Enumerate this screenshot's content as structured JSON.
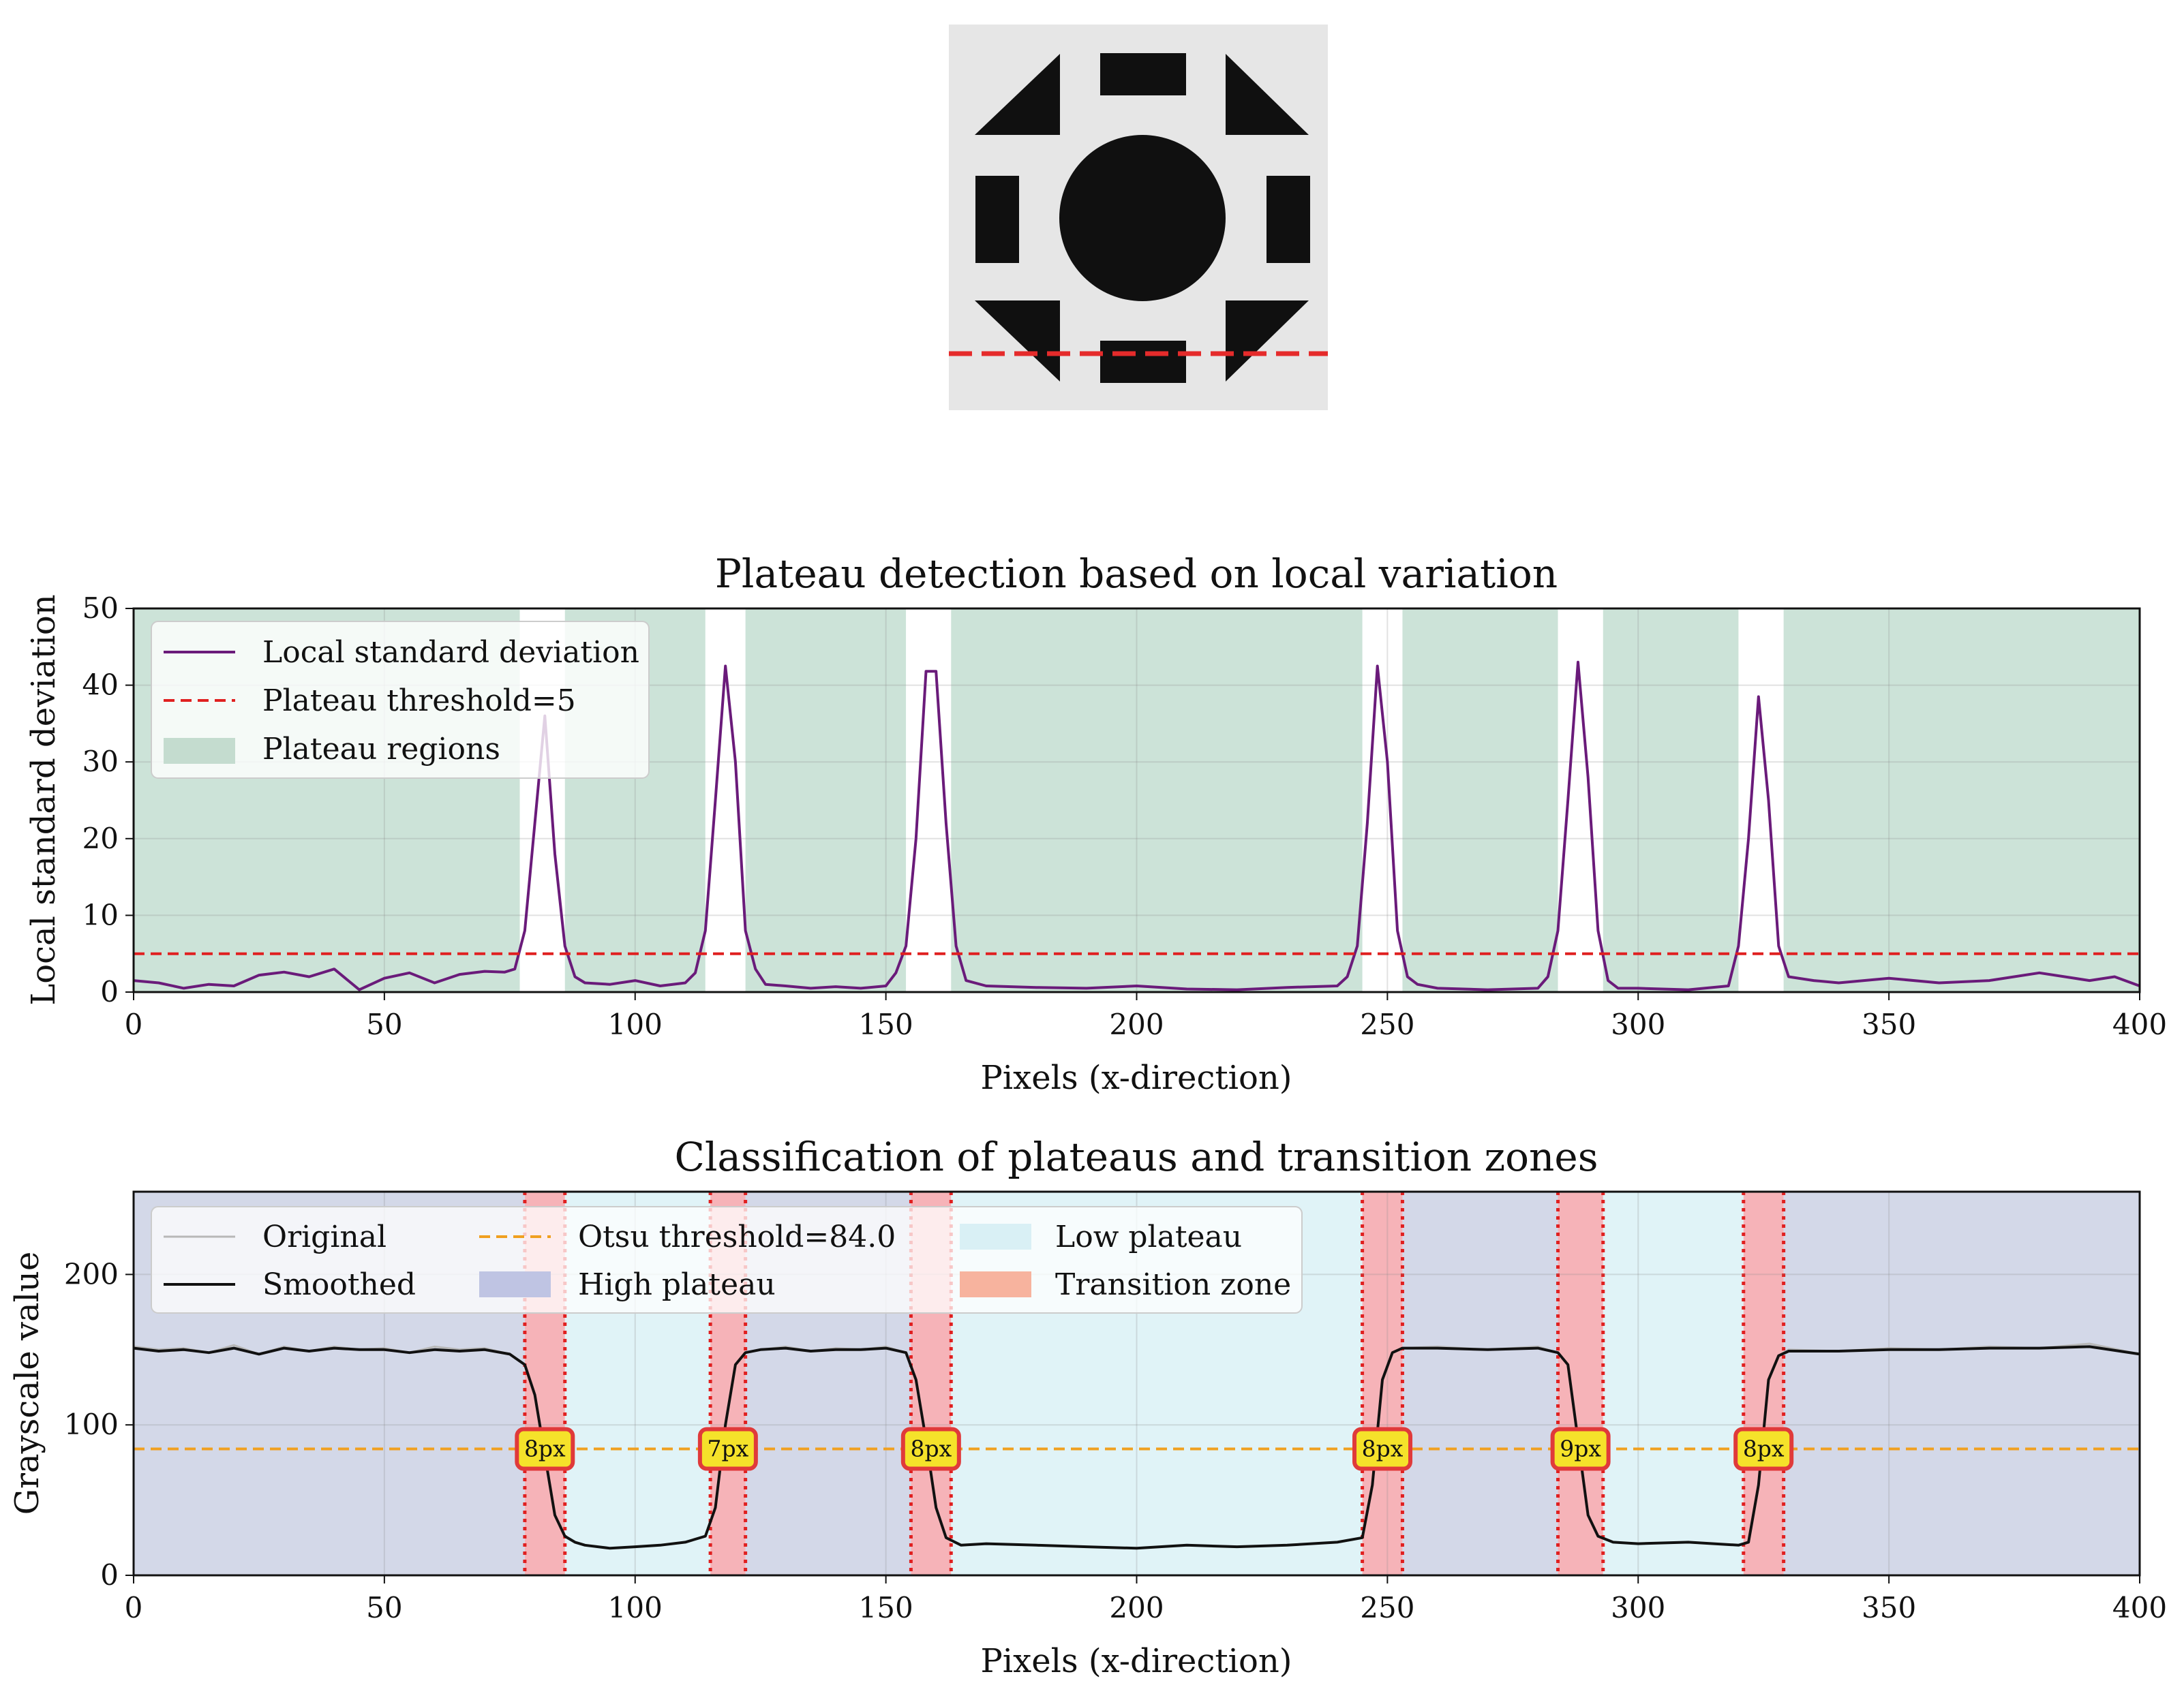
{
  "image_panel": {
    "description_icon": "image-thumbnail-icon",
    "profile_line_color": "#e52b2b"
  },
  "chart_data": [
    {
      "type": "line",
      "title": "Plateau detection based on local variation",
      "xlabel": "Pixels (x-direction)",
      "ylabel": "Local standard deviation",
      "xlim": [
        0,
        400
      ],
      "ylim": [
        0,
        50
      ],
      "xticks": [
        "0",
        "50",
        "100",
        "150",
        "200",
        "250",
        "300",
        "350",
        "400"
      ],
      "yticks": [
        "0",
        "10",
        "20",
        "30",
        "40",
        "50"
      ],
      "grid": true,
      "legend_position": "upper-left",
      "legend": [
        "Local standard deviation",
        "Plateau threshold=5",
        "Plateau regions"
      ],
      "colors": {
        "series": "#6a1b7a",
        "threshold": "#e02020",
        "plateau": "#cce3d8"
      },
      "threshold": 5,
      "series": [
        {
          "name": "Local standard deviation",
          "x": [
            0,
            5,
            10,
            15,
            20,
            25,
            30,
            35,
            40,
            45,
            50,
            55,
            60,
            65,
            70,
            74,
            76,
            78,
            80,
            82,
            84,
            86,
            88,
            90,
            95,
            100,
            105,
            110,
            112,
            114,
            116,
            118,
            120,
            122,
            124,
            126,
            130,
            135,
            140,
            145,
            150,
            152,
            154,
            156,
            158,
            160,
            162,
            164,
            166,
            170,
            180,
            190,
            200,
            210,
            220,
            230,
            240,
            242,
            244,
            246,
            248,
            250,
            252,
            254,
            256,
            260,
            270,
            280,
            282,
            284,
            286,
            288,
            290,
            292,
            294,
            296,
            300,
            310,
            318,
            320,
            322,
            324,
            326,
            328,
            330,
            335,
            340,
            350,
            360,
            370,
            380,
            390,
            395,
            400
          ],
          "values": [
            1.5,
            1.2,
            0.5,
            1,
            0.8,
            2.2,
            2.6,
            2,
            3,
            0.3,
            1.8,
            2.5,
            1.2,
            2.3,
            2.7,
            2.6,
            3,
            8,
            22,
            36,
            18,
            6,
            2,
            1.2,
            1,
            1.5,
            0.8,
            1.2,
            2.5,
            8,
            25,
            42.5,
            30,
            8,
            3,
            1,
            0.8,
            0.5,
            0.7,
            0.5,
            0.8,
            2.5,
            6,
            20,
            41.8,
            41.8,
            22,
            6,
            1.5,
            0.8,
            0.6,
            0.5,
            0.8,
            0.4,
            0.3,
            0.6,
            0.8,
            2,
            6,
            22,
            42.5,
            30,
            8,
            2,
            1,
            0.5,
            0.3,
            0.5,
            2,
            8,
            25,
            43,
            28,
            8,
            1.5,
            0.5,
            0.5,
            0.3,
            0.8,
            6,
            20,
            38.5,
            25,
            6,
            2,
            1.5,
            1.2,
            1.8,
            1.2,
            1.5,
            2.5,
            1.5,
            2,
            0.8
          ]
        }
      ],
      "plateau_regions": [
        [
          0,
          77
        ],
        [
          86,
          114
        ],
        [
          122,
          154
        ],
        [
          163,
          245
        ],
        [
          253,
          284
        ],
        [
          293,
          320
        ],
        [
          329,
          400
        ]
      ]
    },
    {
      "type": "line",
      "title": "Classification of plateaus and transition zones",
      "xlabel": "Pixels (x-direction)",
      "ylabel": "Grayscale value",
      "xlim": [
        0,
        400
      ],
      "ylim": [
        0,
        255
      ],
      "xticks": [
        "0",
        "50",
        "100",
        "150",
        "200",
        "250",
        "300",
        "350",
        "400"
      ],
      "yticks": [
        "0",
        "100",
        "200"
      ],
      "grid": true,
      "legend_position": "upper-left",
      "legend": [
        "Original",
        "Smoothed",
        "Otsu threshold=84.0",
        "High plateau",
        "Low plateau",
        "Transition zone"
      ],
      "colors": {
        "original": "#b8b8b8",
        "smoothed": "#111111",
        "otsu": "#f0a020",
        "high": "#d3d8e8",
        "low": "#e0f3f7",
        "transition": "#f6b3b8",
        "transition_edge": "#e02020",
        "badge_fill": "#f5e22a",
        "badge_edge": "#e03a3a"
      },
      "otsu_threshold": 84.0,
      "series": [
        {
          "name": "Original",
          "x": [
            0,
            5,
            10,
            15,
            20,
            25,
            30,
            35,
            40,
            45,
            50,
            55,
            60,
            65,
            70,
            75,
            78,
            80,
            82,
            84,
            86,
            88,
            90,
            95,
            100,
            105,
            110,
            114,
            116,
            118,
            120,
            122,
            125,
            130,
            135,
            140,
            145,
            150,
            154,
            156,
            158,
            160,
            162,
            165,
            170,
            180,
            190,
            200,
            210,
            220,
            230,
            240,
            245,
            247,
            249,
            251,
            253,
            260,
            270,
            280,
            284,
            286,
            288,
            290,
            292,
            295,
            300,
            310,
            320,
            322,
            324,
            326,
            328,
            330,
            340,
            350,
            360,
            370,
            380,
            390,
            400
          ],
          "values": [
            152,
            150,
            151,
            148,
            153,
            147,
            152,
            149,
            152,
            150,
            151,
            148,
            152,
            150,
            151,
            147,
            140,
            120,
            80,
            40,
            26,
            22,
            20,
            18,
            19,
            20,
            22,
            26,
            45,
            100,
            140,
            148,
            150,
            152,
            149,
            151,
            150,
            152,
            148,
            130,
            90,
            45,
            25,
            20,
            21,
            20,
            19,
            18,
            20,
            19,
            20,
            22,
            25,
            60,
            130,
            148,
            151,
            152,
            150,
            152,
            148,
            140,
            90,
            40,
            26,
            22,
            21,
            22,
            20,
            22,
            60,
            130,
            146,
            150,
            149,
            151,
            150,
            152,
            151,
            154,
            147
          ]
        },
        {
          "name": "Smoothed",
          "x": [
            0,
            5,
            10,
            15,
            20,
            25,
            30,
            35,
            40,
            45,
            50,
            55,
            60,
            65,
            70,
            75,
            78,
            80,
            82,
            84,
            86,
            88,
            90,
            95,
            100,
            105,
            110,
            114,
            116,
            118,
            120,
            122,
            125,
            130,
            135,
            140,
            145,
            150,
            154,
            156,
            158,
            160,
            162,
            165,
            170,
            180,
            190,
            200,
            210,
            220,
            230,
            240,
            245,
            247,
            249,
            251,
            253,
            260,
            270,
            280,
            284,
            286,
            288,
            290,
            292,
            295,
            300,
            310,
            320,
            322,
            324,
            326,
            328,
            330,
            340,
            350,
            360,
            370,
            380,
            390,
            400
          ],
          "values": [
            151,
            149,
            150,
            148,
            151,
            147,
            151,
            149,
            151,
            150,
            150,
            148,
            150,
            149,
            150,
            147,
            140,
            120,
            80,
            40,
            26,
            22,
            20,
            18,
            19,
            20,
            22,
            26,
            45,
            100,
            140,
            148,
            150,
            151,
            149,
            150,
            150,
            151,
            148,
            130,
            90,
            45,
            25,
            20,
            21,
            20,
            19,
            18,
            20,
            19,
            20,
            22,
            25,
            60,
            130,
            148,
            151,
            151,
            150,
            151,
            148,
            140,
            90,
            40,
            26,
            22,
            21,
            22,
            20,
            22,
            60,
            130,
            146,
            149,
            149,
            150,
            150,
            151,
            151,
            152,
            147
          ]
        }
      ],
      "plateau_regions": [
        {
          "kind": "high",
          "range": [
            0,
            78
          ]
        },
        {
          "kind": "low",
          "range": [
            86,
            115
          ]
        },
        {
          "kind": "high",
          "range": [
            122,
            155
          ]
        },
        {
          "kind": "low",
          "range": [
            163,
            245
          ]
        },
        {
          "kind": "high",
          "range": [
            253,
            284
          ]
        },
        {
          "kind": "low",
          "range": [
            293,
            321
          ]
        },
        {
          "kind": "high",
          "range": [
            329,
            400
          ]
        }
      ],
      "transition_zones": [
        {
          "range": [
            78,
            86
          ],
          "label": "8px"
        },
        {
          "range": [
            115,
            122
          ],
          "label": "7px"
        },
        {
          "range": [
            155,
            163
          ],
          "label": "8px"
        },
        {
          "range": [
            245,
            253
          ],
          "label": "8px"
        },
        {
          "range": [
            284,
            293
          ],
          "label": "9px"
        },
        {
          "range": [
            321,
            329
          ],
          "label": "8px"
        }
      ]
    }
  ]
}
